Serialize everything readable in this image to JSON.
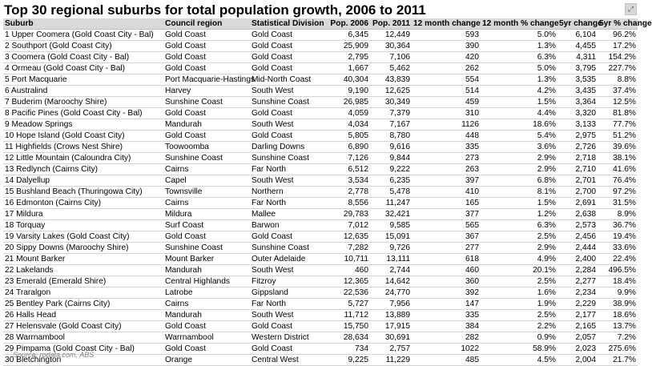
{
  "title": "Top 30 regional suburbs for total population growth, 2006 to 2011",
  "headers": [
    "Suburb",
    "Council region",
    "Statistical Division",
    "Pop. 2006",
    "Pop. 2011",
    "12 month change",
    "12 month % change",
    "5yr change",
    "5yr % change"
  ],
  "rows": [
    [
      "1 Upper Coomera (Gold Coast City - Bal)",
      "Gold Coast",
      "Gold Coast",
      "6,345",
      "12,449",
      "593",
      "5.0%",
      "6,104",
      "96.2%"
    ],
    [
      "2 Southport (Gold Coast City)",
      "Gold Coast",
      "Gold Coast",
      "25,909",
      "30,364",
      "390",
      "1.3%",
      "4,455",
      "17.2%"
    ],
    [
      "3 Coomera (Gold Coast City - Bal)",
      "Gold Coast",
      "Gold Coast",
      "2,795",
      "7,106",
      "420",
      "6.3%",
      "4,311",
      "154.2%"
    ],
    [
      "4 Ormeau (Gold Coast City - Bal)",
      "Gold Coast",
      "Gold Coast",
      "1,667",
      "5,462",
      "262",
      "5.0%",
      "3,795",
      "227.7%"
    ],
    [
      "5 Port Macquarie",
      "Port Macquarie-Hastings",
      "Mid-North Coast",
      "40,304",
      "43,839",
      "554",
      "1.3%",
      "3,535",
      "8.8%"
    ],
    [
      "6 Australind",
      "Harvey",
      "South West",
      "9,190",
      "12,625",
      "514",
      "4.2%",
      "3,435",
      "37.4%"
    ],
    [
      "7 Buderim (Maroochy Shire)",
      "Sunshine Coast",
      "Sunshine Coast",
      "26,985",
      "30,349",
      "459",
      "1.5%",
      "3,364",
      "12.5%"
    ],
    [
      "8 Pacific Pines (Gold Coast City - Bal)",
      "Gold Coast",
      "Gold Coast",
      "4,059",
      "7,379",
      "310",
      "4.4%",
      "3,320",
      "81.8%"
    ],
    [
      "9 Meadow Springs",
      "Mandurah",
      "South West",
      "4,034",
      "7,167",
      "1126",
      "18.6%",
      "3,133",
      "77.7%"
    ],
    [
      "10 Hope Island (Gold Coast City)",
      "Gold Coast",
      "Gold Coast",
      "5,805",
      "8,780",
      "448",
      "5.4%",
      "2,975",
      "51.2%"
    ],
    [
      "11 Highfields (Crows Nest Shire)",
      "Toowoomba",
      "Darling Downs",
      "6,890",
      "9,616",
      "335",
      "3.6%",
      "2,726",
      "39.6%"
    ],
    [
      "12 Little Mountain (Caloundra City)",
      "Sunshine Coast",
      "Sunshine Coast",
      "7,126",
      "9,844",
      "273",
      "2.9%",
      "2,718",
      "38.1%"
    ],
    [
      "13 Redlynch (Cairns City)",
      "Cairns",
      "Far North",
      "6,512",
      "9,222",
      "263",
      "2.9%",
      "2,710",
      "41.6%"
    ],
    [
      "14 Dalyellup",
      "Capel",
      "South West",
      "3,534",
      "6,235",
      "397",
      "6.8%",
      "2,701",
      "76.4%"
    ],
    [
      "15 Bushland Beach (Thuringowa City)",
      "Townsville",
      "Northern",
      "2,778",
      "5,478",
      "410",
      "8.1%",
      "2,700",
      "97.2%"
    ],
    [
      "16 Edmonton (Cairns City)",
      "Cairns",
      "Far North",
      "8,556",
      "11,247",
      "165",
      "1.5%",
      "2,691",
      "31.5%"
    ],
    [
      "17 Mildura",
      "Mildura",
      "Mallee",
      "29,783",
      "32,421",
      "377",
      "1.2%",
      "2,638",
      "8.9%"
    ],
    [
      "18 Torquay",
      "Surf Coast",
      "Barwon",
      "7,012",
      "9,585",
      "565",
      "6.3%",
      "2,573",
      "36.7%"
    ],
    [
      "19 Varsity Lakes (Gold Coast City)",
      "Gold Coast",
      "Gold Coast",
      "12,635",
      "15,091",
      "367",
      "2.5%",
      "2,456",
      "19.4%"
    ],
    [
      "20 Sippy Downs (Maroochy Shire)",
      "Sunshine Coast",
      "Sunshine Coast",
      "7,282",
      "9,726",
      "277",
      "2.9%",
      "2,444",
      "33.6%"
    ],
    [
      "21 Mount Barker",
      "Mount Barker",
      "Outer Adelaide",
      "10,711",
      "13,111",
      "618",
      "4.9%",
      "2,400",
      "22.4%"
    ],
    [
      "22 Lakelands",
      "Mandurah",
      "South West",
      "460",
      "2,744",
      "460",
      "20.1%",
      "2,284",
      "496.5%"
    ],
    [
      "23 Emerald (Emerald Shire)",
      "Central Highlands",
      "Fitzroy",
      "12,365",
      "14,642",
      "360",
      "2.5%",
      "2,277",
      "18.4%"
    ],
    [
      "24 Traralgon",
      "Latrobe",
      "Gippsland",
      "22,536",
      "24,770",
      "392",
      "1.6%",
      "2,234",
      "9.9%"
    ],
    [
      "25 Bentley Park (Cairns City)",
      "Cairns",
      "Far North",
      "5,727",
      "7,956",
      "147",
      "1.9%",
      "2,229",
      "38.9%"
    ],
    [
      "26 Halls Head",
      "Mandurah",
      "South West",
      "11,712",
      "13,889",
      "335",
      "2.5%",
      "2,177",
      "18.6%"
    ],
    [
      "27 Helensvale (Gold Coast City)",
      "Gold Coast",
      "Gold Coast",
      "15,750",
      "17,915",
      "384",
      "2.2%",
      "2,165",
      "13.7%"
    ],
    [
      "28 Warrnambool",
      "Warrnambool",
      "Western District",
      "28,634",
      "30,691",
      "282",
      "0.9%",
      "2,057",
      "7.2%"
    ],
    [
      "29 Pimpama (Gold Coast City - Bal)",
      "Gold Coast",
      "Gold Coast",
      "734",
      "2,757",
      "1022",
      "58.9%",
      "2,023",
      "275.6%"
    ],
    [
      "30 Bletchington",
      "Orange",
      "Central West",
      "9,225",
      "11,229",
      "485",
      "4.5%",
      "2,004",
      "21.7%"
    ]
  ],
  "source": "Source: rpdata.com, ABS",
  "corner_icon": "expand-icon"
}
